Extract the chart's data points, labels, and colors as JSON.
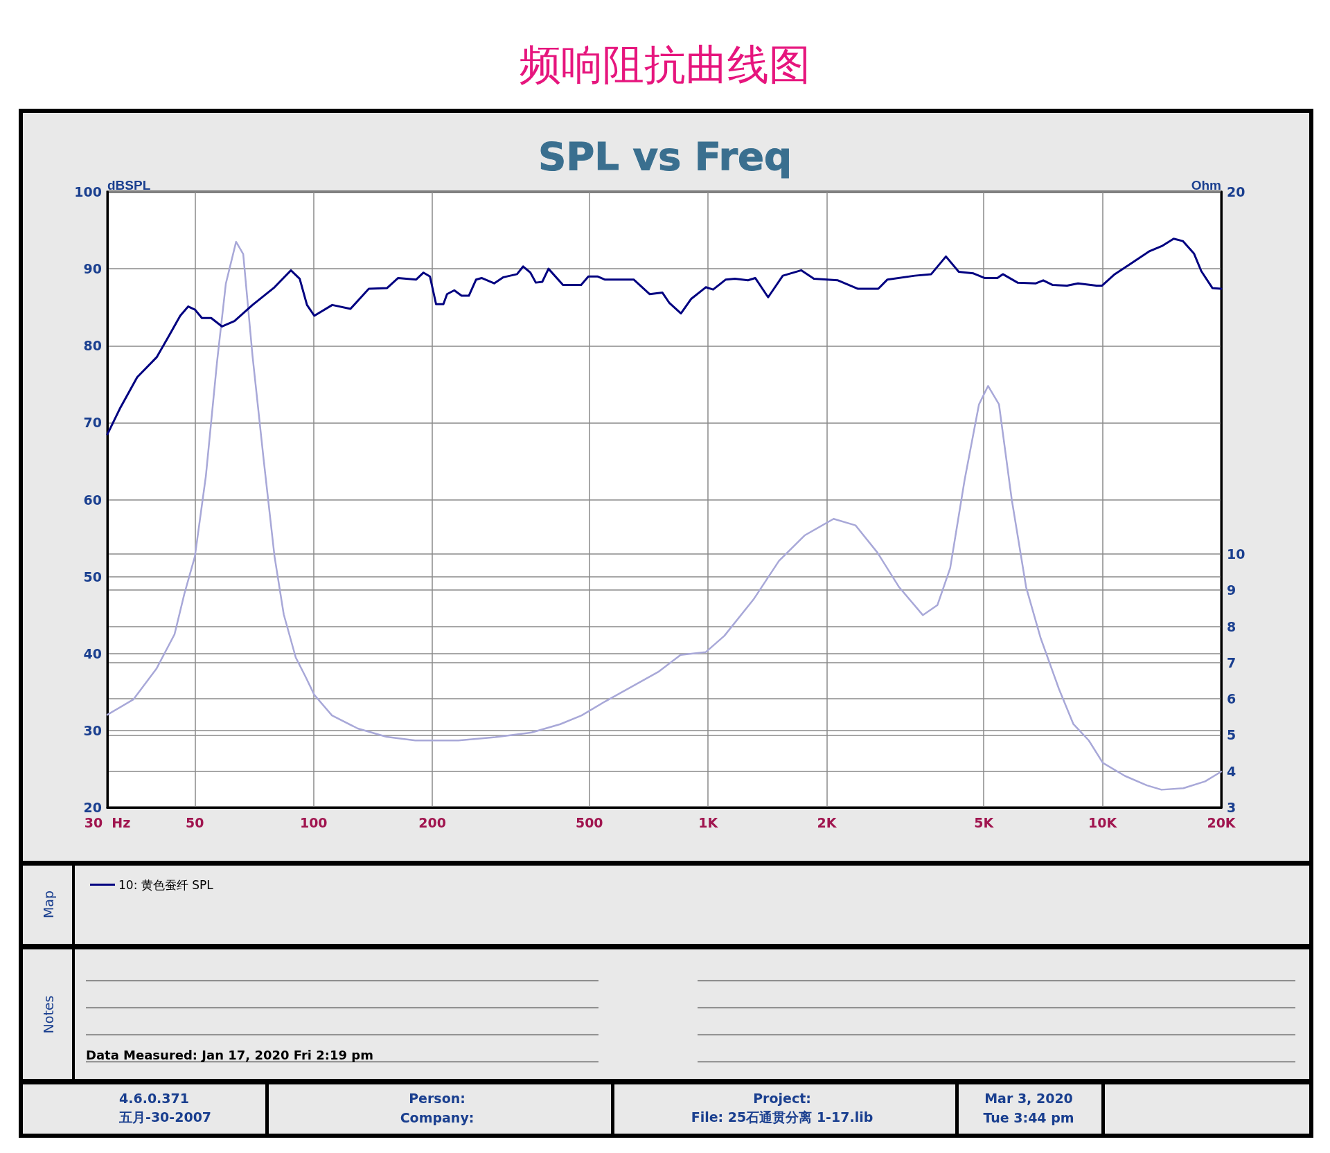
{
  "chart_data": {
    "type": "line",
    "title": "频响阻抗曲线图",
    "subtitle": "SPL vs Freq",
    "ylabel": "dBSPL",
    "y2label": "Ohm",
    "xlim": [
      30,
      20000
    ],
    "xticks": [
      {
        "value": 30,
        "label": "30  Hz"
      },
      50,
      100,
      200,
      500,
      {
        "value": 1000,
        "label": "1K"
      },
      {
        "value": 2000,
        "label": "2K"
      },
      {
        "value": 5000,
        "label": "5K"
      },
      {
        "value": 10000,
        "label": "10K"
      },
      {
        "value": 20000,
        "label": "20K"
      }
    ],
    "ylim": [
      20,
      100
    ],
    "yticks": [
      20,
      30,
      40,
      50,
      60,
      70,
      80,
      90,
      100
    ],
    "y2lim": [
      3,
      20
    ],
    "y2ticks": [
      3,
      4,
      5,
      6,
      7,
      8,
      9,
      10,
      20
    ],
    "log": "x",
    "grid": true,
    "legend": "bottom",
    "marker": "none",
    "line_style": "solid",
    "series": [
      {
        "name": "10: 黄色蚕纤 SPL",
        "color": "#000080",
        "x": [
          30,
          32.4,
          35.7,
          40,
          43,
          45.9,
          48.1,
          50,
          52.1,
          55,
          58.6,
          63,
          70,
          79.6,
          87.6,
          92.2,
          96.2,
          100.4,
          111.5,
          124,
          138,
          153.6,
          163.8,
          182,
          189.9,
          197.2,
          204.4,
          213.3,
          217.9,
          227.3,
          237.2,
          247.5,
          258.2,
          266.6,
          286.9,
          302.8,
          327.9,
          339.8,
          354.5,
          365.9,
          379.9,
          394,
          428.8,
          476.6,
          497.2,
          524.2,
          546.9,
          647.7,
          711.5,
          766,
          796.7,
          853.6,
          906.7,
          987.5,
          1030,
          1109,
          1170,
          1262,
          1317,
          1420,
          1547,
          1722,
          1855,
          2134,
          2400,
          2700,
          2849,
          3343,
          3679,
          4009,
          4321,
          4708,
          5023,
          5413,
          5589,
          6091,
          6779,
          7075,
          7464,
          8131,
          8670,
          9652,
          9966,
          10743,
          11830,
          13172,
          14200,
          15150,
          15980,
          17050,
          17800,
          18990,
          20000
        ],
        "values": [
          68.5,
          72,
          75.9,
          78.5,
          81.3,
          83.9,
          85.1,
          84.7,
          83.6,
          83.6,
          82.5,
          83.2,
          85.3,
          87.6,
          89.8,
          88.7,
          85.3,
          83.9,
          85.3,
          84.8,
          87.4,
          87.5,
          88.8,
          88.6,
          89.5,
          89,
          85.4,
          85.4,
          86.7,
          87.2,
          86.5,
          86.5,
          88.6,
          88.8,
          88.1,
          88.9,
          89.3,
          90.3,
          89.5,
          88.2,
          88.3,
          90,
          87.9,
          87.9,
          89,
          89,
          88.6,
          88.6,
          86.7,
          86.9,
          85.6,
          84.2,
          86.1,
          87.6,
          87.3,
          88.6,
          88.7,
          88.5,
          88.8,
          86.3,
          89.1,
          89.8,
          88.7,
          88.5,
          87.4,
          87.4,
          88.6,
          89.1,
          89.3,
          91.6,
          89.6,
          89.4,
          88.8,
          88.8,
          89.3,
          88.2,
          88.1,
          88.5,
          87.9,
          87.8,
          88.1,
          87.8,
          87.8,
          89.3,
          90.7,
          92.3,
          93,
          93.9,
          93.6,
          92,
          89.7,
          87.5,
          87.4
        ]
      },
      {
        "color": "#a8a8d8",
        "axis": "y2",
        "x": [
          30,
          34.9,
          40,
          44.4,
          47,
          50,
          53.3,
          56.9,
          59.9,
          63.6,
          66.3,
          70,
          74.8,
          79.6,
          84,
          90.1,
          95.3,
          100.4,
          111.3,
          129.4,
          153,
          181,
          233,
          289,
          357,
          422,
          478,
          546.9,
          747,
          852,
          987,
          1100,
          1303,
          1513,
          1756,
          2081,
          2365,
          2687,
          3052,
          3505,
          3816,
          4110,
          4472,
          4862,
          5128,
          5465,
          5884,
          6403,
          6973,
          7756,
          8438,
          9230,
          10020,
          11400,
          12960,
          14110,
          16030,
          18200,
          20000
        ],
        "values": [
          5.56,
          5.98,
          6.84,
          7.78,
          8.89,
          9.93,
          12.14,
          15.3,
          17.46,
          18.62,
          18.28,
          15.47,
          12.55,
          9.93,
          8.33,
          7.14,
          6.62,
          6.11,
          5.54,
          5.18,
          4.95,
          4.85,
          4.85,
          4.94,
          5.07,
          5.3,
          5.54,
          5.92,
          6.74,
          7.21,
          7.29,
          7.74,
          8.74,
          9.81,
          10.51,
          10.97,
          10.79,
          10.04,
          9.08,
          8.31,
          8.59,
          9.61,
          12.05,
          14.13,
          14.64,
          14.13,
          11.52,
          9.08,
          7.67,
          6.27,
          5.3,
          4.85,
          4.23,
          3.87,
          3.61,
          3.49,
          3.53,
          3.72,
          3.99
        ]
      }
    ],
    "annotations": [
      "Map",
      "Notes",
      "Data Measured: Jan 17, 2020  Fri  2:19 pm",
      "4.6.0.371",
      "五月-30-2007",
      "Person:",
      "Company:",
      "Project:",
      "File: 25石通贯分离 1-17.lib",
      "Mar 3, 2020",
      "Tue  3:44 pm"
    ]
  }
}
